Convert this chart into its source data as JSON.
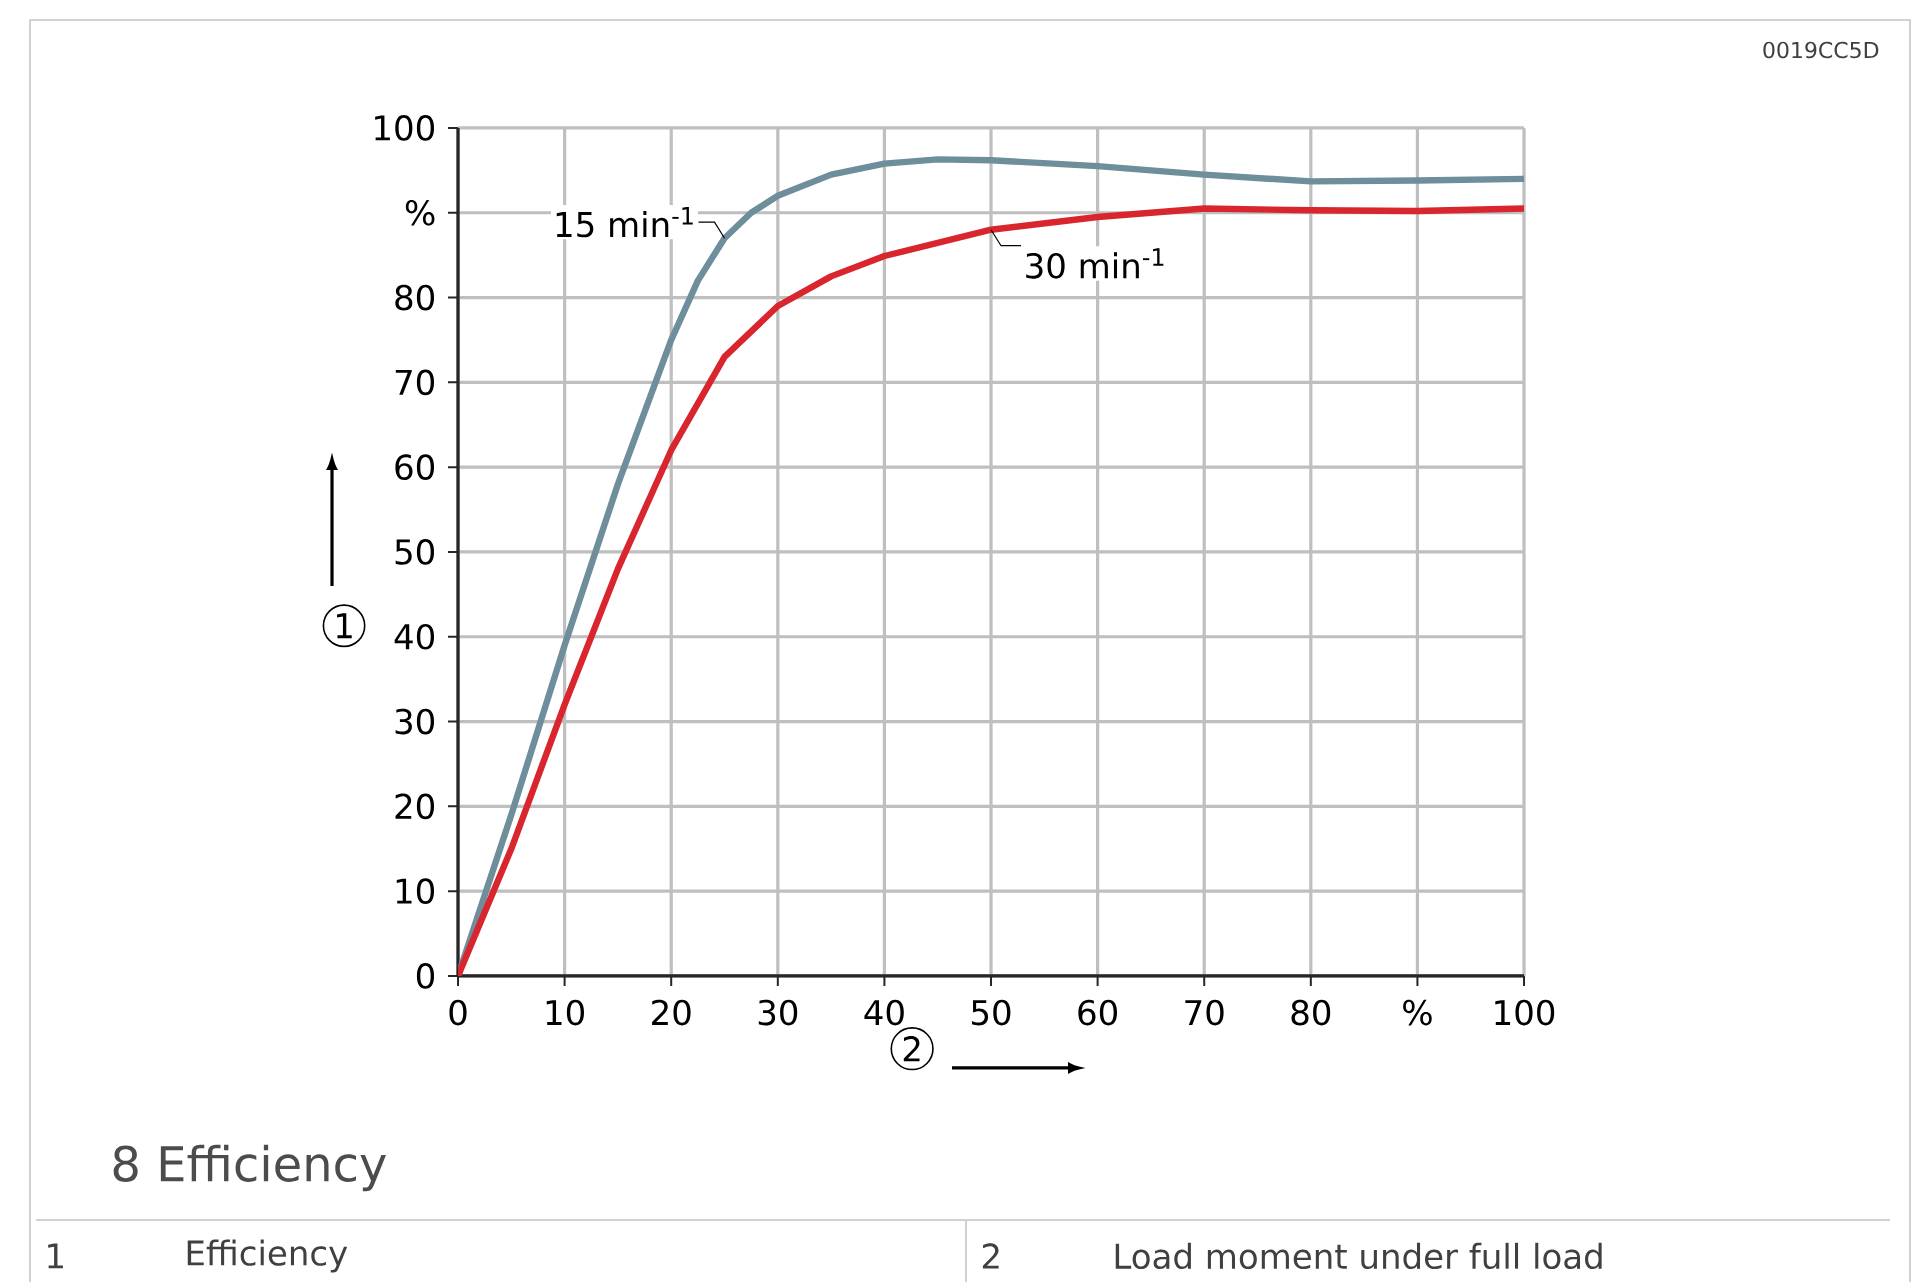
{
  "chart_data": {
    "type": "line",
    "title": "8 Efficiency",
    "xlabel": "2",
    "ylabel": "1",
    "annotations": [
      "0019CC5D",
      "1",
      "Efficiency",
      "2",
      "Load moment under full load"
    ],
    "xlim": [
      0,
      100
    ],
    "ylim": [
      0,
      100
    ],
    "xticks": [
      0,
      10,
      20,
      30,
      40,
      50,
      60,
      70,
      80,
      {
        "value": 90,
        "label": "%"
      },
      100
    ],
    "yticks": [
      0,
      10,
      20,
      30,
      40,
      50,
      60,
      70,
      80,
      {
        "value": 90,
        "label": "%"
      },
      100
    ],
    "grid": true,
    "marker": "none",
    "line_style": "solid",
    "series": [
      {
        "name": "15 min$^{-1}$",
        "color": "#6e8e9c",
        "x": [
          0,
          5,
          10,
          15,
          20,
          22.5,
          25,
          27.5,
          30,
          35,
          40,
          45,
          50,
          60,
          70,
          80,
          90,
          100
        ],
        "values": [
          0,
          19,
          39,
          58,
          75,
          82,
          87,
          90,
          92,
          94.5,
          95.8,
          96.3,
          96.2,
          95.5,
          94.5,
          93.7,
          93.8,
          94
        ]
      },
      {
        "name": "30 min$^{-1}$",
        "color": "#d9252e",
        "x": [
          0,
          5,
          10,
          15,
          20,
          25,
          30,
          35,
          40,
          50,
          60,
          70,
          80,
          90,
          100
        ],
        "values": [
          0,
          15,
          32,
          48,
          62,
          73,
          79,
          82.5,
          84.9,
          88,
          89.5,
          90.5,
          90.3,
          90.2,
          90.5
        ]
      }
    ]
  }
}
